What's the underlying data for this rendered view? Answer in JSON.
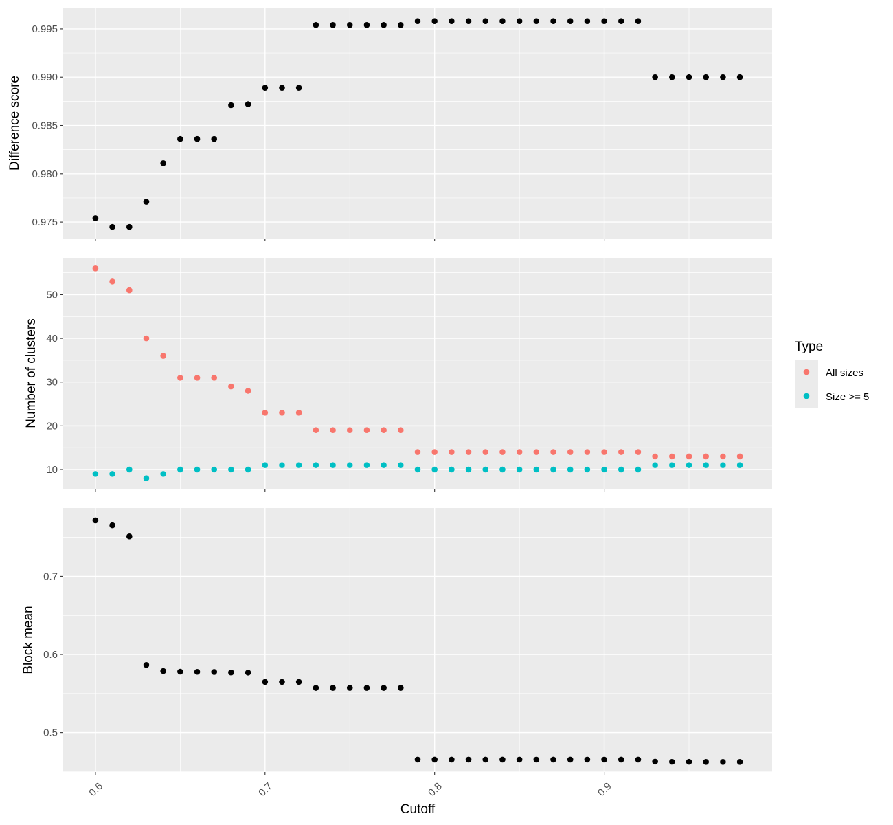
{
  "chart_data": [
    {
      "type": "scatter",
      "ylabel": "Difference score",
      "ylim": [
        0.9733,
        0.9972
      ],
      "yticks": [
        0.975,
        0.98,
        0.985,
        0.99,
        0.995
      ],
      "ytick_labels": [
        "0.975",
        "0.980",
        "0.985",
        "0.990",
        "0.995"
      ],
      "series": [
        {
          "name": "Difference score",
          "color": "#000000",
          "x": [
            0.6,
            0.61,
            0.62,
            0.63,
            0.64,
            0.65,
            0.66,
            0.67,
            0.68,
            0.69,
            0.7,
            0.71,
            0.72,
            0.73,
            0.74,
            0.75,
            0.76,
            0.77,
            0.78,
            0.79,
            0.8,
            0.81,
            0.82,
            0.83,
            0.84,
            0.85,
            0.86,
            0.87,
            0.88,
            0.89,
            0.9,
            0.91,
            0.92,
            0.93,
            0.94,
            0.95,
            0.96,
            0.97,
            0.98
          ],
          "y": [
            0.9754,
            0.9745,
            0.9745,
            0.9771,
            0.9811,
            0.9836,
            0.9836,
            0.9836,
            0.9871,
            0.9872,
            0.9889,
            0.9889,
            0.9889,
            0.9954,
            0.9954,
            0.9954,
            0.9954,
            0.9954,
            0.9954,
            0.9958,
            0.9958,
            0.9958,
            0.9958,
            0.9958,
            0.9958,
            0.9958,
            0.9958,
            0.9958,
            0.9958,
            0.9958,
            0.9958,
            0.9958,
            0.9958,
            0.99,
            0.99,
            0.99,
            0.99,
            0.99,
            0.99
          ]
        }
      ]
    },
    {
      "type": "scatter",
      "ylabel": "Number of clusters",
      "ylim": [
        5.6,
        58.4
      ],
      "yticks": [
        10,
        20,
        30,
        40,
        50
      ],
      "ytick_labels": [
        "10",
        "20",
        "30",
        "40",
        "50"
      ],
      "series": [
        {
          "name": "All sizes",
          "color": "#F8766D",
          "x": [
            0.6,
            0.61,
            0.62,
            0.63,
            0.64,
            0.65,
            0.66,
            0.67,
            0.68,
            0.69,
            0.7,
            0.71,
            0.72,
            0.73,
            0.74,
            0.75,
            0.76,
            0.77,
            0.78,
            0.79,
            0.8,
            0.81,
            0.82,
            0.83,
            0.84,
            0.85,
            0.86,
            0.87,
            0.88,
            0.89,
            0.9,
            0.91,
            0.92,
            0.93,
            0.94,
            0.95,
            0.96,
            0.97,
            0.98
          ],
          "y": [
            56,
            53,
            51,
            40,
            36,
            31,
            31,
            31,
            29,
            28,
            23,
            23,
            23,
            19,
            19,
            19,
            19,
            19,
            19,
            14,
            14,
            14,
            14,
            14,
            14,
            14,
            14,
            14,
            14,
            14,
            14,
            14,
            14,
            13,
            13,
            13,
            13,
            13,
            13
          ]
        },
        {
          "name": "Size >= 5",
          "color": "#00BFC4",
          "x": [
            0.6,
            0.61,
            0.62,
            0.63,
            0.64,
            0.65,
            0.66,
            0.67,
            0.68,
            0.69,
            0.7,
            0.71,
            0.72,
            0.73,
            0.74,
            0.75,
            0.76,
            0.77,
            0.78,
            0.79,
            0.8,
            0.81,
            0.82,
            0.83,
            0.84,
            0.85,
            0.86,
            0.87,
            0.88,
            0.89,
            0.9,
            0.91,
            0.92,
            0.93,
            0.94,
            0.95,
            0.96,
            0.97,
            0.98
          ],
          "y": [
            9,
            9,
            10,
            8,
            9,
            10,
            10,
            10,
            10,
            10,
            11,
            11,
            11,
            11,
            11,
            11,
            11,
            11,
            11,
            10,
            10,
            10,
            10,
            10,
            10,
            10,
            10,
            10,
            10,
            10,
            10,
            10,
            10,
            11,
            11,
            11,
            11,
            11,
            11
          ]
        }
      ]
    },
    {
      "type": "scatter",
      "ylabel": "Block mean",
      "xlabel": "Cutoff",
      "ylim": [
        0.4495,
        0.7875
      ],
      "yticks": [
        0.5,
        0.6,
        0.7
      ],
      "ytick_labels": [
        "0.5",
        "0.6",
        "0.7"
      ],
      "series": [
        {
          "name": "Block mean",
          "color": "#000000",
          "x": [
            0.6,
            0.61,
            0.62,
            0.63,
            0.64,
            0.65,
            0.66,
            0.67,
            0.68,
            0.69,
            0.7,
            0.71,
            0.72,
            0.73,
            0.74,
            0.75,
            0.76,
            0.77,
            0.78,
            0.79,
            0.8,
            0.81,
            0.82,
            0.83,
            0.84,
            0.85,
            0.86,
            0.87,
            0.88,
            0.89,
            0.9,
            0.91,
            0.92,
            0.93,
            0.94,
            0.95,
            0.96,
            0.97,
            0.98
          ],
          "y": [
            0.7717,
            0.7654,
            0.7512,
            0.5866,
            0.5788,
            0.578,
            0.5778,
            0.5776,
            0.577,
            0.5768,
            0.5649,
            0.5649,
            0.5649,
            0.5573,
            0.5573,
            0.5573,
            0.5573,
            0.5573,
            0.5573,
            0.4654,
            0.4654,
            0.4654,
            0.4654,
            0.4654,
            0.4654,
            0.4654,
            0.4654,
            0.4654,
            0.4654,
            0.4654,
            0.4654,
            0.4654,
            0.4654,
            0.4628,
            0.4626,
            0.4626,
            0.4624,
            0.4624,
            0.4624
          ]
        }
      ]
    }
  ],
  "x_axis": {
    "title": "Cutoff",
    "xlim": [
      0.581,
      0.999
    ],
    "ticks": [
      0.6,
      0.7,
      0.8,
      0.9
    ],
    "tick_labels": [
      "0.6",
      "0.7",
      "0.8",
      "0.9"
    ],
    "minor_ticks": [
      0.65,
      0.75,
      0.85,
      0.95
    ]
  },
  "legend": {
    "title": "Type",
    "entries": [
      {
        "label": "All sizes",
        "color": "#F8766D"
      },
      {
        "label": "Size >= 5",
        "color": "#00BFC4"
      }
    ]
  }
}
